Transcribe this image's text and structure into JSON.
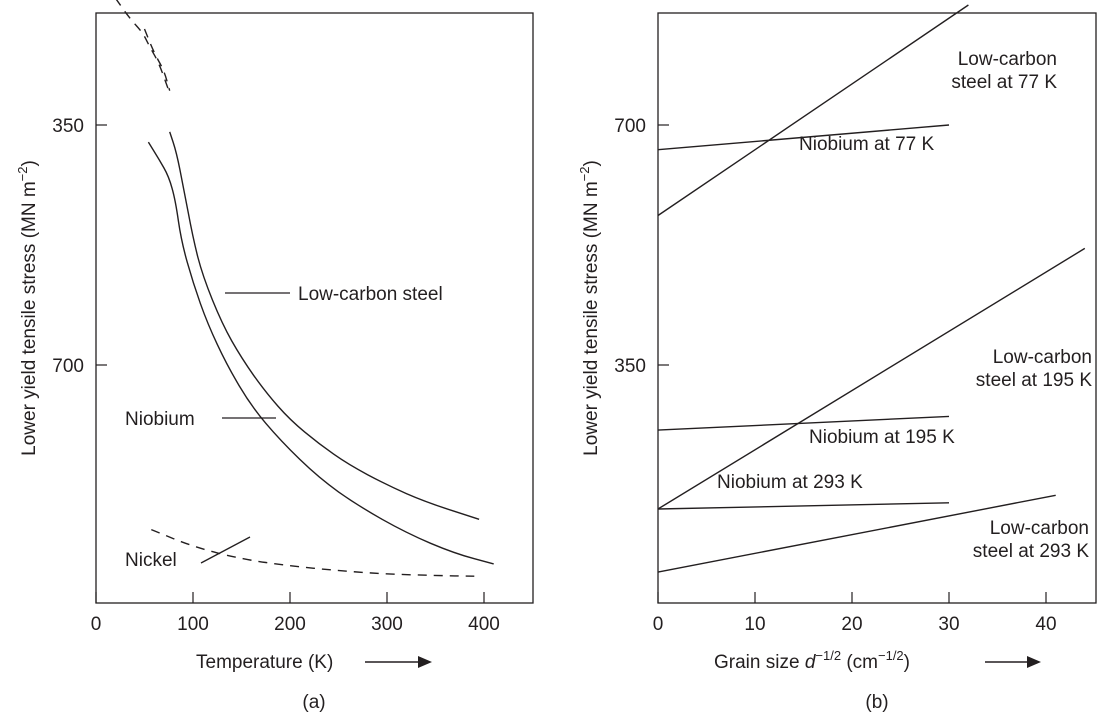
{
  "chart_data": [
    {
      "id": "a",
      "type": "line",
      "panel_label": "(a)",
      "xlabel": "Temperature (K)",
      "ylabel": {
        "main": "Lower yield tensile stress (MN m",
        "exp": "−2",
        "close": ")"
      },
      "xlim": [
        0,
        450
      ],
      "ylim": [
        1000,
        150
      ],
      "x_ticks": [
        0,
        100,
        200,
        300,
        400
      ],
      "y_ticks": [
        350,
        700
      ],
      "grid": false,
      "series": [
        {
          "name": "Low-carbon steel",
          "style": "solid",
          "points": [
            [
              76,
              360
            ],
            [
              83,
              390
            ],
            [
              90,
              440
            ],
            [
              100,
              515
            ],
            [
              110,
              570
            ],
            [
              130,
              640
            ],
            [
              150,
              690
            ],
            [
              175,
              740
            ],
            [
              200,
              780
            ],
            [
              230,
              815
            ],
            [
              260,
              845
            ],
            [
              300,
              875
            ],
            [
              340,
              900
            ],
            [
              395,
              925
            ]
          ]
        },
        {
          "style": "solid",
          "points": [
            [
              54,
              375
            ],
            [
              65,
              400
            ],
            [
              75,
              425
            ],
            [
              82,
              460
            ],
            [
              88,
              520
            ],
            [
              100,
              580
            ],
            [
              115,
              640
            ],
            [
              135,
              700
            ],
            [
              160,
              760
            ],
            [
              190,
              810
            ],
            [
              230,
              865
            ],
            [
              270,
              905
            ],
            [
              320,
              945
            ],
            [
              370,
              975
            ],
            [
              410,
              990
            ]
          ]
        },
        {
          "style": "dashed",
          "points": [
            [
              20,
              165
            ],
            [
              35,
              195
            ],
            [
              48,
              215
            ],
            [
              55,
              235
            ],
            [
              65,
              260
            ],
            [
              75,
              300
            ]
          ]
        },
        {
          "style": "dashed",
          "points": [
            [
              50,
              210
            ],
            [
              60,
              245
            ],
            [
              70,
              270
            ],
            [
              76,
              300
            ]
          ]
        },
        {
          "name": "Nickel",
          "style": "dashed",
          "points": [
            [
              57,
              940
            ],
            [
              100,
              965
            ],
            [
              150,
              983
            ],
            [
              200,
              993
            ],
            [
              250,
              1000
            ],
            [
              300,
              1005
            ],
            [
              350,
              1007
            ],
            [
              390,
              1008
            ]
          ]
        }
      ],
      "labels": [
        "Low-carbon steel",
        "Niobium",
        "Nickel"
      ]
    },
    {
      "id": "b",
      "type": "line",
      "panel_label": "(b)",
      "xlabel": {
        "main": "Grain size ",
        "italic": "d",
        "exp": "−1/2",
        "mid": " (cm",
        "exp2": "−1/2",
        "close": ")"
      },
      "ylabel": {
        "main": "Lower yield tensile stress (MN m",
        "exp": "−2",
        "close": ")"
      },
      "xlim": [
        0,
        45
      ],
      "ylim": [
        0,
        875
      ],
      "x_ticks": [
        0,
        10,
        20,
        30,
        40
      ],
      "y_ticks": [
        350,
        700
      ],
      "grid": false,
      "series": [
        {
          "name": "Low-carbon steel at 77 K",
          "points": [
            [
              0,
              568
            ],
            [
              32,
              875
            ]
          ]
        },
        {
          "name": "Niobium at 77 K",
          "points": [
            [
              0,
              664
            ],
            [
              30,
              700
            ]
          ]
        },
        {
          "name": "Low-carbon steel at 195 K",
          "points": [
            [
              0,
              140
            ],
            [
              44,
              520
            ]
          ]
        },
        {
          "name": "Niobium at 195 K",
          "points": [
            [
              0,
              255
            ],
            [
              30,
              275
            ]
          ]
        },
        {
          "name": "Niobium at 293 K",
          "points": [
            [
              0,
              140
            ],
            [
              30,
              149
            ]
          ]
        },
        {
          "name": "Low-carbon steel at 293 K",
          "points": [
            [
              0,
              48
            ],
            [
              41,
              160
            ]
          ]
        }
      ]
    }
  ]
}
